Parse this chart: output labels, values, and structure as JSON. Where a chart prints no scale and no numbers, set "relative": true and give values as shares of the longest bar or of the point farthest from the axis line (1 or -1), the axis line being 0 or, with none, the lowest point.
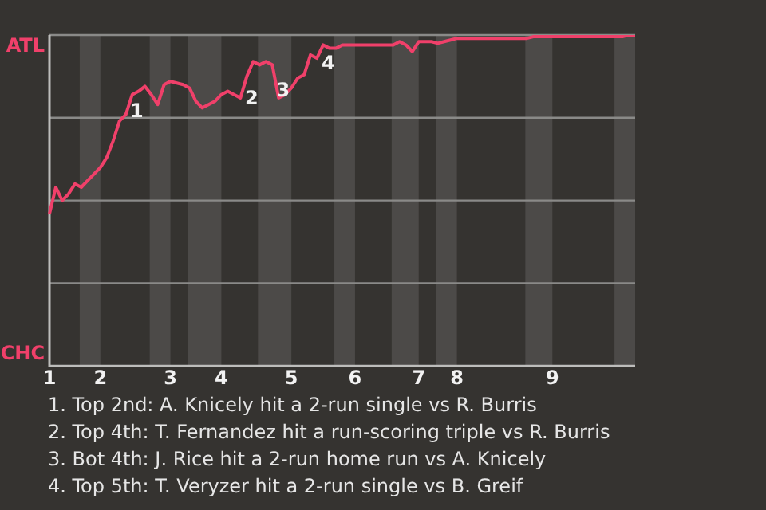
{
  "chart_data": {
    "type": "line",
    "relative": true,
    "categories": [
      "1",
      null,
      null,
      null,
      null,
      null,
      null,
      null,
      "2",
      null,
      null,
      null,
      null,
      null,
      null,
      null,
      null,
      null,
      null,
      "3",
      null,
      null,
      null,
      null,
      null,
      null,
      null,
      "4",
      null,
      null,
      null,
      null,
      null,
      null,
      null,
      null,
      null,
      null,
      "5",
      null,
      null,
      null,
      null,
      null,
      null,
      null,
      null,
      null,
      "6",
      null,
      null,
      null,
      null,
      null,
      null,
      null,
      null,
      null,
      "7",
      null,
      null,
      null,
      null,
      null,
      "8",
      null,
      null,
      null,
      null,
      null,
      null,
      null,
      null,
      null,
      null,
      null,
      null,
      null,
      null,
      "9",
      null,
      null,
      null,
      null,
      null,
      null,
      null,
      null,
      null,
      null,
      null,
      null,
      null
    ],
    "grid": false,
    "legend": false,
    "marker": "none",
    "line_style": "solid",
    "series": [
      {
        "color": "#f0406a",
        "values": [
          0.46,
          0.54,
          0.5,
          0.52,
          0.55,
          0.54,
          0.56,
          0.58,
          0.6,
          0.63,
          0.68,
          0.74,
          0.76,
          0.82,
          0.83,
          0.845,
          0.82,
          0.79,
          0.85,
          0.86,
          0.855,
          0.85,
          0.84,
          0.8,
          0.78,
          0.79,
          0.8,
          0.82,
          0.83,
          0.82,
          0.81,
          0.875,
          0.92,
          0.91,
          0.92,
          0.91,
          0.81,
          0.82,
          0.84,
          0.87,
          0.88,
          0.94,
          0.93,
          0.97,
          0.96,
          0.96,
          0.97,
          0.97,
          0.97,
          0.97,
          0.97,
          0.97,
          0.97,
          0.97,
          0.97,
          0.98,
          0.97,
          0.95,
          0.98,
          0.98,
          0.98,
          0.975,
          0.98,
          0.985,
          0.99,
          0.99,
          0.99,
          0.99,
          0.99,
          0.99,
          0.99,
          0.99,
          0.99,
          0.99,
          0.99,
          0.99,
          0.995,
          0.995,
          0.995,
          0.995,
          0.995,
          0.995,
          0.995,
          0.995,
          0.995,
          0.995,
          0.995,
          0.995,
          0.995,
          0.995,
          0.995,
          1,
          1
        ],
        "name": null
      }
    ],
    "ref_lines": [
      {
        "axis": "y",
        "value": 0.25,
        "color": "#8a8a88"
      },
      {
        "axis": "y",
        "value": 0.5,
        "color": "#8a8a88"
      },
      {
        "axis": "y",
        "value": 0.75,
        "color": "#8a8a88"
      },
      {
        "axis": "y",
        "value": 1,
        "color": "#8a8a88"
      }
    ],
    "annotations": [
      "ATL",
      "CHC",
      "1",
      "2",
      "3",
      "4",
      "1. Top 2nd: A. Knicely hit a 2-run single vs R. Burris",
      "2. Top 4th: T. Fernandez hit a run-scoring triple vs R. Burris",
      "3. Bot 4th: J. Rice hit a 2-run home run vs A. Knicely",
      "4. Top 5th: T. Veryzer hit a 2-run single vs B. Greif"
    ]
  }
}
